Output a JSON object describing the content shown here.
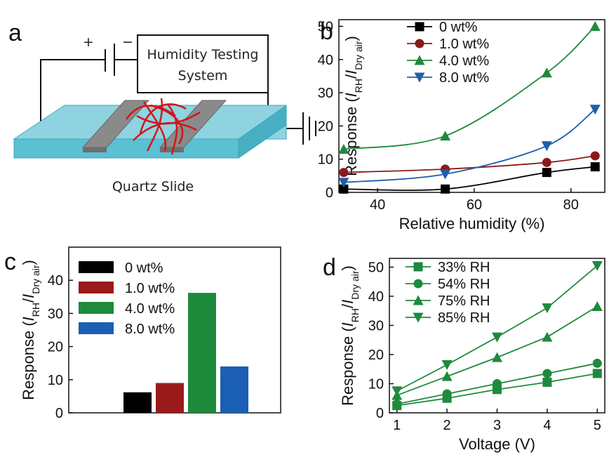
{
  "diagram": {
    "panel_label": "a",
    "plus": "+",
    "minus": "−",
    "instrument": [
      "Humidity Testing",
      "System"
    ],
    "substrate": "Quartz Slide"
  },
  "chart_data": [
    {
      "type": "line",
      "panel_label": "b",
      "ylabel": [
        "Response (",
        "I",
        "RH",
        "/",
        "I",
        "Dry air",
        ")"
      ],
      "xlabel": "Relative humidity (%)",
      "x": [
        33,
        54,
        75,
        85
      ],
      "series": [
        {
          "name": "0 wt%",
          "color": "#000000",
          "marker": "square",
          "values": [
            1,
            1,
            6,
            7.7
          ]
        },
        {
          "name": "1.0 wt%",
          "color": "#8b1a1a",
          "marker": "circle",
          "values": [
            6,
            7,
            9,
            11
          ]
        },
        {
          "name": "4.0 wt%",
          "color": "#1e8a3c",
          "marker": "triangle-up",
          "values": [
            13,
            17,
            36,
            50
          ]
        },
        {
          "name": "8.0 wt%",
          "color": "#1f5fa8",
          "marker": "triangle-down",
          "values": [
            3,
            5.5,
            14,
            25
          ]
        }
      ],
      "smooth": true,
      "xlim": [
        32,
        87
      ],
      "xticks": [
        40,
        60,
        80
      ],
      "ylim": [
        0,
        52
      ],
      "yticks": [
        0,
        10,
        20,
        30,
        40,
        50
      ],
      "legend": "upper left"
    },
    {
      "type": "bar",
      "panel_label": "c",
      "ylabel": [
        "Response (",
        "I",
        "RH",
        "/",
        "I",
        "Dry air",
        ")"
      ],
      "categories": [
        "0 wt%",
        "1.0 wt%",
        "4.0 wt%",
        "8.0 wt%"
      ],
      "values": [
        6.2,
        9.0,
        36.2,
        14.0
      ],
      "colors": [
        "#000000",
        "#9b1b1b",
        "#1e8a3c",
        "#1a5fb4"
      ],
      "ylim": [
        0,
        50
      ],
      "yticks": [
        0,
        10,
        20,
        30,
        40
      ],
      "legend": "upper left"
    },
    {
      "type": "line",
      "panel_label": "d",
      "ylabel": [
        "Response (",
        "I",
        "RH",
        "/",
        "I",
        "Dry air",
        ")"
      ],
      "xlabel": "Voltage (V)",
      "x": [
        1,
        2,
        3,
        4,
        5
      ],
      "series": [
        {
          "name": "33% RH",
          "color": "#1e8a3c",
          "marker": "square",
          "values": [
            2.5,
            5,
            8,
            10.5,
            13.5
          ]
        },
        {
          "name": "54% RH",
          "color": "#1e8a3c",
          "marker": "circle",
          "values": [
            3,
            6.5,
            10,
            13.5,
            17
          ]
        },
        {
          "name": "75% RH",
          "color": "#1e8a3c",
          "marker": "triangle-up",
          "values": [
            6,
            12.5,
            19,
            26,
            36.5
          ]
        },
        {
          "name": "85% RH",
          "color": "#1e8a3c",
          "marker": "triangle-down",
          "values": [
            7.5,
            16.5,
            26,
            36,
            50.5
          ]
        }
      ],
      "smooth": false,
      "xlim": [
        0.85,
        5.15
      ],
      "xticks": [
        1,
        2,
        3,
        4,
        5
      ],
      "ylim": [
        0,
        53
      ],
      "yticks": [
        0,
        10,
        20,
        30,
        40,
        50
      ],
      "legend": "upper left"
    }
  ]
}
